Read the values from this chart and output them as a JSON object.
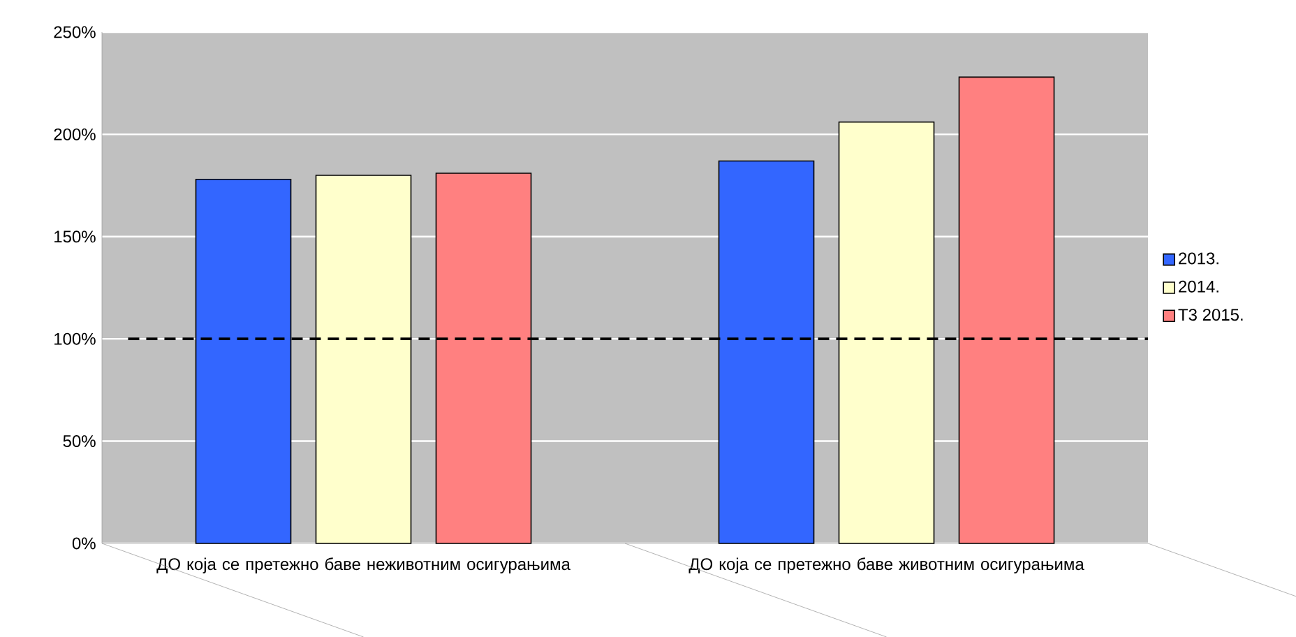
{
  "chart_data": {
    "type": "bar",
    "categories": [
      "ДО која се претежно баве неживотним осигурањима",
      "ДО која се претежно баве животним осигурањима"
    ],
    "series": [
      {
        "name": "2013.",
        "color": "#3366ff",
        "values": [
          178,
          187
        ]
      },
      {
        "name": "2014.",
        "color": "#ffffcc",
        "values": [
          180,
          206
        ]
      },
      {
        "name": "Т3 2015.",
        "color": "#ff8080",
        "values": [
          181,
          228
        ]
      }
    ],
    "ylim": [
      0,
      250
    ],
    "yticks": [
      {
        "value": 0,
        "label": "0%"
      },
      {
        "value": 50,
        "label": "50%"
      },
      {
        "value": 100,
        "label": "100%"
      },
      {
        "value": 150,
        "label": "150%"
      },
      {
        "value": 200,
        "label": "200%"
      },
      {
        "value": 250,
        "label": "250%"
      }
    ],
    "ref_lines": [
      {
        "axis": "y",
        "value": 100,
        "color": "#000000",
        "line_style": "dashed"
      }
    ],
    "grid": "y",
    "legend": "right"
  }
}
